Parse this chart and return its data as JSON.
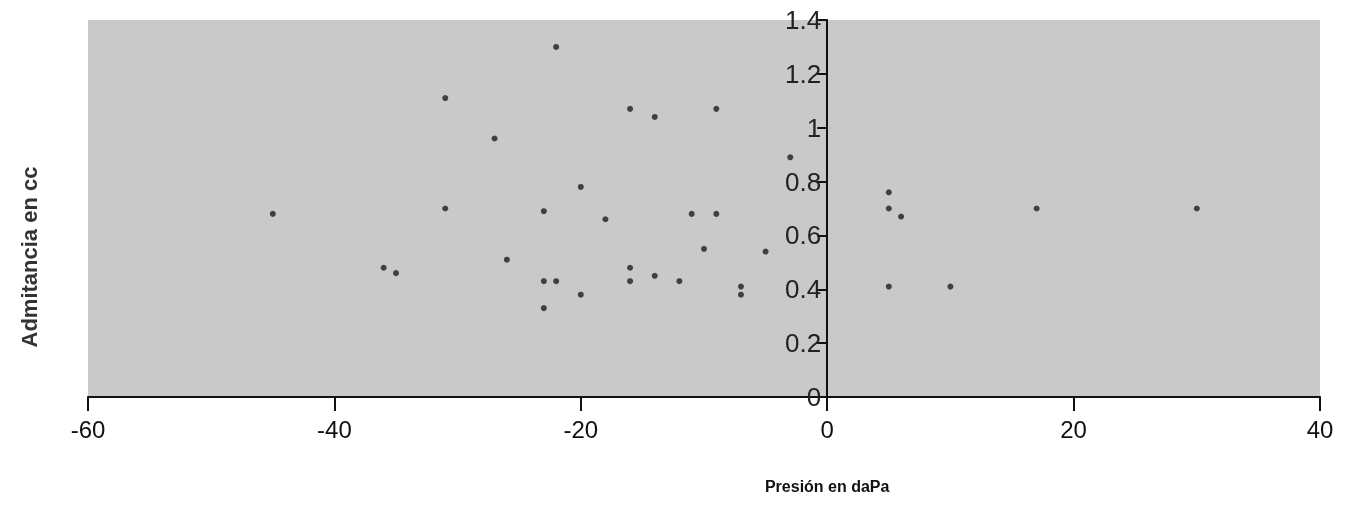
{
  "chart_data": {
    "type": "scatter",
    "xlabel": "Presión en daPa",
    "ylabel": "Admitancia en cc",
    "x": [
      -45,
      -36,
      -35,
      -31,
      -31,
      -27,
      -26,
      -23,
      -23,
      -23,
      -22,
      -22,
      -20,
      -20,
      -18,
      -16,
      -16,
      -16,
      -14,
      -14,
      -12,
      -11,
      -10,
      -9,
      -9,
      -7,
      -7,
      -5,
      -3,
      5,
      5,
      6,
      5,
      10,
      17,
      30
    ],
    "series": [
      {
        "color": "#1e1e1e",
        "values": [
          0.68,
          0.48,
          0.46,
          1.11,
          0.7,
          0.96,
          0.51,
          0.69,
          0.43,
          0.33,
          1.3,
          0.43,
          0.78,
          0.38,
          0.66,
          1.07,
          0.48,
          0.43,
          1.04,
          0.45,
          0.43,
          0.68,
          0.55,
          1.07,
          0.68,
          0.41,
          0.38,
          0.54,
          0.89,
          0.76,
          0.7,
          0.67,
          0.41,
          0.41,
          0.7,
          0.7
        ]
      }
    ],
    "xlim": [
      -60,
      40
    ],
    "xticks": [
      -60,
      -40,
      -20,
      0,
      20,
      40
    ],
    "ylim": [
      0,
      1.4
    ],
    "yticks": [
      0,
      0.2,
      0.4,
      0.6,
      0.8,
      1,
      1.2,
      1.4
    ],
    "grid": false,
    "marker": "circle"
  }
}
